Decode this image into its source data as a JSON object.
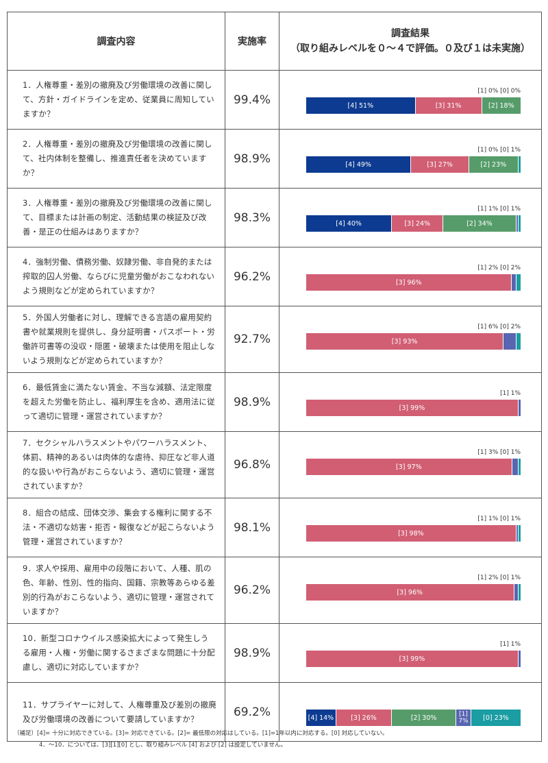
{
  "header": {
    "content": "調査内容",
    "rate": "実施率",
    "result_title": "調査結果",
    "result_sub": "（取り組みレベルを０～４で評価。０及び１は未実施）"
  },
  "colors": {
    "4": "#0d3b91",
    "3": "#d15e73",
    "2": "#569c6a",
    "1": "#5865b0",
    "0": "#1a9da3"
  },
  "chart_data": {
    "type": "bar",
    "orientation": "horizontal-stacked-100",
    "levels": [
      "[4]",
      "[3]",
      "[2]",
      "[1]",
      "[0]"
    ],
    "rows": [
      {
        "question": "1．人権尊重・差別の撤廃及び労働環境の改善に関して、方針・ガイドラインを定め、従業員に周知していますか？",
        "rate": "99.4%",
        "segments": [
          {
            "level": "4",
            "value": 51,
            "label": "[4] 51%"
          },
          {
            "level": "3",
            "value": 31,
            "label": "[3] 31%"
          },
          {
            "level": "2",
            "value": 18,
            "label": "[2] 18%"
          }
        ],
        "outside": "[1] 0%  [0] 0%"
      },
      {
        "question": "2．人権尊重・差別の撤廃及び労働環境の改善に関して、社内体制を整備し、推進責任者を決めていますか？",
        "rate": "98.9%",
        "segments": [
          {
            "level": "4",
            "value": 49,
            "label": "[4] 49%"
          },
          {
            "level": "3",
            "value": 27,
            "label": "[3] 27%"
          },
          {
            "level": "2",
            "value": 23,
            "label": "[2] 23%"
          },
          {
            "level": "0",
            "value": 1,
            "label": ""
          }
        ],
        "outside": "[1] 0%  [0] 1%"
      },
      {
        "question": "3．人権尊重・差別の撤廃及び労働環境の改善に関して、目標または計画の制定、活動結果の検証及び改善・是正の仕組みはありますか？",
        "rate": "98.3%",
        "segments": [
          {
            "level": "4",
            "value": 40,
            "label": "[4] 40%"
          },
          {
            "level": "3",
            "value": 24,
            "label": "[3] 24%"
          },
          {
            "level": "2",
            "value": 34,
            "label": "[2] 34%"
          },
          {
            "level": "1",
            "value": 1,
            "label": ""
          },
          {
            "level": "0",
            "value": 1,
            "label": ""
          }
        ],
        "outside": "[1] 1%  [0] 1%"
      },
      {
        "question": "4．強制労働、債務労働、奴隷労働、非自発的または搾取的囚人労働、ならびに児童労働がおこなわれないよう規則などが定められていますか？",
        "rate": "96.2%",
        "segments": [
          {
            "level": "3",
            "value": 96,
            "label": "[3] 96%"
          },
          {
            "level": "1",
            "value": 2,
            "label": ""
          },
          {
            "level": "0",
            "value": 2,
            "label": ""
          }
        ],
        "outside": "[1] 2%  [0] 2%"
      },
      {
        "question": "5．外国人労働者に対し、理解できる言語の雇用契約書や就業規則を提供し、身分証明書・パスポート・労働許可書等の没収・隠匿・破壊または使用を阻止しないよう規則などが定められていますか？",
        "rate": "92.7%",
        "segments": [
          {
            "level": "3",
            "value": 93,
            "label": "[3] 93%"
          },
          {
            "level": "1",
            "value": 6,
            "label": ""
          },
          {
            "level": "0",
            "value": 2,
            "label": ""
          }
        ],
        "outside": "[1] 6%  [0] 2%"
      },
      {
        "question": "6．最低賃金に満たない賃金、不当な減額、法定限度を超えた労働を防止し、福利厚生を含め、適用法に従って適切に管理・運営されていますか？",
        "rate": "98.9%",
        "segments": [
          {
            "level": "3",
            "value": 99,
            "label": "[3] 99%"
          },
          {
            "level": "1",
            "value": 1,
            "label": ""
          }
        ],
        "outside": "[1] 1%"
      },
      {
        "question": "7．セクシャルハラスメントやパワーハラスメント、体罰、精神的あるいは肉体的な虐待、抑圧など非人道的な扱いや行為がおこらないよう、適切に管理・運営されていますか？",
        "rate": "96.8%",
        "segments": [
          {
            "level": "3",
            "value": 97,
            "label": "[3] 97%"
          },
          {
            "level": "1",
            "value": 3,
            "label": ""
          },
          {
            "level": "0",
            "value": 1,
            "label": ""
          }
        ],
        "outside": "[1] 3%  [0] 1%"
      },
      {
        "question": "8．組合の結成、団体交渉、集会する権利に関する不法・不適切な妨害・拒否・報復などが起こらないよう管理・運営されていますか？",
        "rate": "98.1%",
        "segments": [
          {
            "level": "3",
            "value": 98,
            "label": "[3] 98%"
          },
          {
            "level": "1",
            "value": 1,
            "label": ""
          },
          {
            "level": "0",
            "value": 1,
            "label": ""
          }
        ],
        "outside": "[1] 1%  [0] 1%"
      },
      {
        "question": "9．求人や採用、雇用中の段階において、人種、肌の色、年齢、性別、性的指向、国籍、宗教等あらゆる差別的行為がおこらないよう、適切に管理・運営されていますか？",
        "rate": "96.2%",
        "segments": [
          {
            "level": "3",
            "value": 96,
            "label": "[3] 96%"
          },
          {
            "level": "1",
            "value": 2,
            "label": ""
          },
          {
            "level": "0",
            "value": 1,
            "label": ""
          }
        ],
        "outside": "[1] 2%  [0] 1%"
      },
      {
        "question": "10．新型コロナウイルス感染拡大によって発生しうる雇用・人権・労働に関するさまざまな問題に十分配慮し、適切に対応していますか？",
        "rate": "98.9%",
        "segments": [
          {
            "level": "3",
            "value": 99,
            "label": "[3] 99%"
          },
          {
            "level": "1",
            "value": 1,
            "label": ""
          }
        ],
        "outside": "[1] 1%"
      },
      {
        "question": "11．サプライヤーに対して、人権尊重及び差別の撤廃及び労働環境の改善について要請していますか？",
        "rate": "69.2%",
        "segments": [
          {
            "level": "4",
            "value": 14,
            "label": "[4] 14%"
          },
          {
            "level": "3",
            "value": 26,
            "label": "[3] 26%"
          },
          {
            "level": "2",
            "value": 30,
            "label": "[2] 30%"
          },
          {
            "level": "1",
            "value": 7,
            "label": "[1] 7%"
          },
          {
            "level": "0",
            "value": 23,
            "label": "[0] 23%"
          }
        ],
        "outside": ""
      }
    ]
  },
  "notes": {
    "line1": "（補足）[4]= 十分に対応できている。[3]= 対応できている。[2]= 最低限の対応はしている。[1]=1年以内に対応する。[0] 対応していない。",
    "line2": "4．～10．については、[3][1][0] とし、取り組みレベル [4] および [2] は設定していません。"
  }
}
